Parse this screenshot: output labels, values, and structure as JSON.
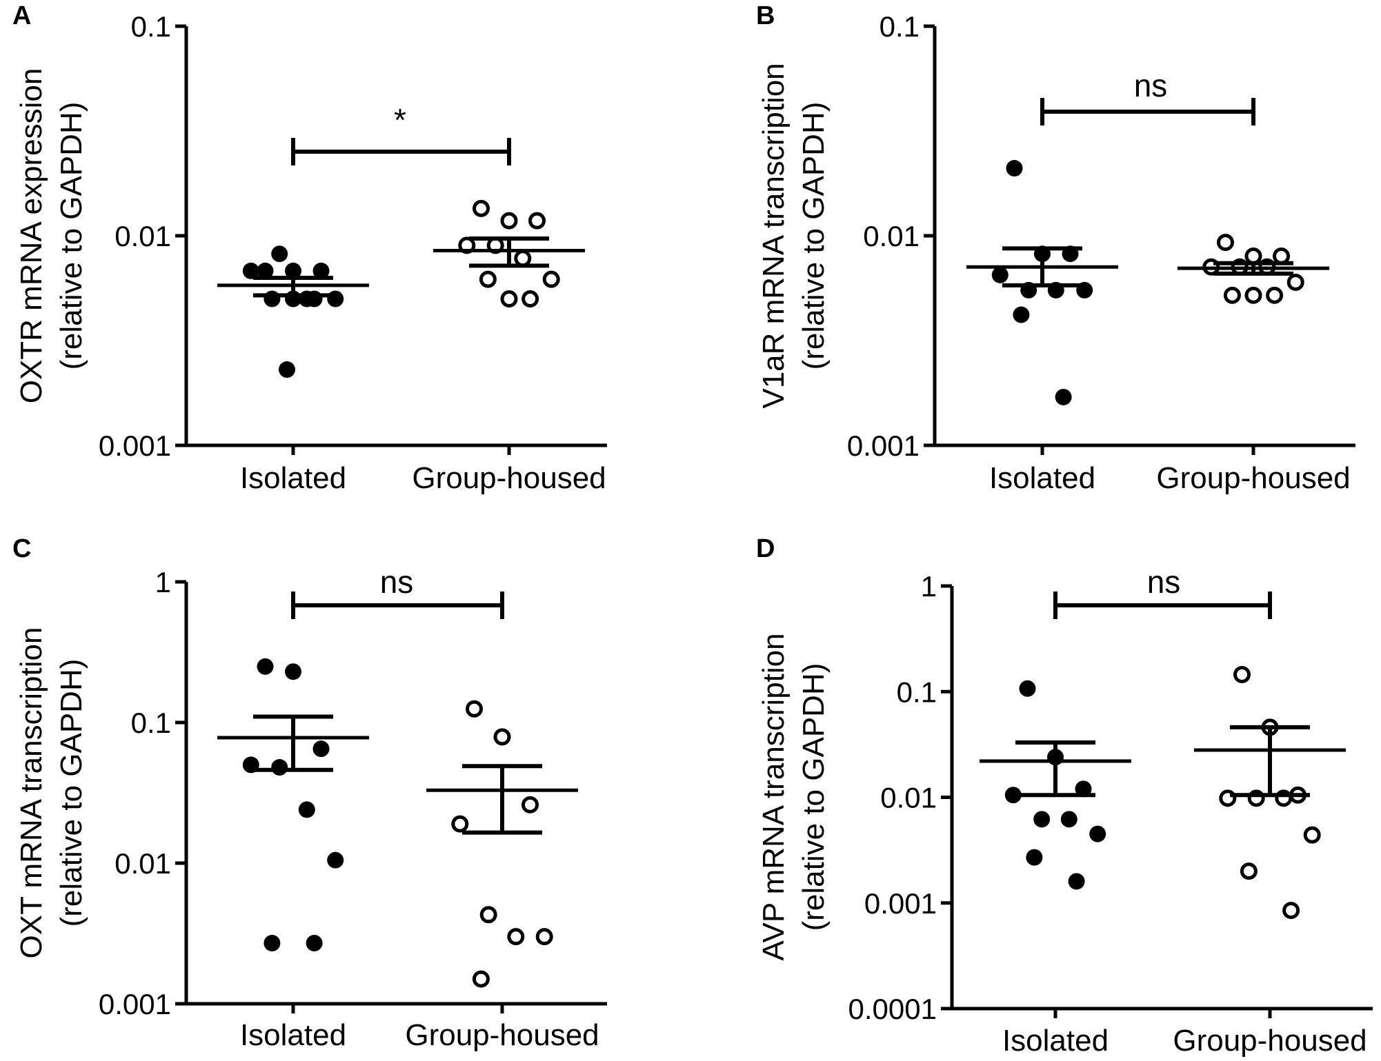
{
  "chart_data": [
    {
      "type": "scatter",
      "panel": "A",
      "ylabel": [
        "OXTR mRNA expression",
        "(relative to GAPDH)"
      ],
      "yscale": "log",
      "ylim": [
        0.001,
        0.1
      ],
      "yticks": [
        "0.1",
        "0.01",
        "0.001"
      ],
      "categories": [
        "Isolated",
        "Group-housed"
      ],
      "significance": "*",
      "series": [
        {
          "name": "Isolated",
          "marker": "filled",
          "mean": 0.0058,
          "sem_low": 0.0052,
          "sem_high": 0.0063,
          "values": [
            0.0068,
            0.0068,
            0.0068,
            0.0068,
            0.0082,
            0.005,
            0.005,
            0.005,
            0.005,
            0.005,
            0.0023
          ]
        },
        {
          "name": "Group-housed",
          "marker": "open",
          "mean": 0.0085,
          "sem_low": 0.0072,
          "sem_high": 0.0097,
          "values": [
            0.0135,
            0.0118,
            0.0118,
            0.009,
            0.009,
            0.0078,
            0.0062,
            0.0062,
            0.005,
            0.005
          ]
        }
      ]
    },
    {
      "type": "scatter",
      "panel": "B",
      "ylabel": [
        "V1aR mRNA transcription",
        "(relative to  GAPDH)"
      ],
      "yscale": "log",
      "ylim": [
        0.001,
        0.1
      ],
      "yticks": [
        "0.1",
        "0.01",
        "0.001"
      ],
      "categories": [
        "Isolated",
        "Group-housed"
      ],
      "significance": "ns",
      "series": [
        {
          "name": "Isolated",
          "marker": "filled",
          "mean": 0.0071,
          "sem_low": 0.0058,
          "sem_high": 0.0087,
          "values": [
            0.021,
            0.0082,
            0.0082,
            0.0065,
            0.0055,
            0.0055,
            0.0055,
            0.0042,
            0.0017
          ]
        },
        {
          "name": "Group-housed",
          "marker": "open",
          "mean": 0.007,
          "sem_low": 0.0066,
          "sem_high": 0.0074,
          "values": [
            0.0093,
            0.008,
            0.008,
            0.0071,
            0.0071,
            0.0071,
            0.006,
            0.0052,
            0.0052,
            0.0052
          ]
        }
      ]
    },
    {
      "type": "scatter",
      "panel": "C",
      "ylabel": [
        "OXT mRNA transcription",
        "(relative to  GAPDH)"
      ],
      "yscale": "log",
      "ylim": [
        0.001,
        1
      ],
      "yticks": [
        "1",
        "0.1",
        "0.01",
        "0.001"
      ],
      "categories": [
        "Isolated",
        "Group-housed"
      ],
      "significance": "ns",
      "series": [
        {
          "name": "Isolated",
          "marker": "filled",
          "mean": 0.078,
          "sem_low": 0.046,
          "sem_high": 0.11,
          "values": [
            0.25,
            0.23,
            0.065,
            0.05,
            0.048,
            0.024,
            0.0105,
            0.0027,
            0.0027
          ]
        },
        {
          "name": "Group-housed",
          "marker": "open",
          "mean": 0.033,
          "sem_low": 0.0165,
          "sem_high": 0.049,
          "values": [
            0.125,
            0.079,
            0.026,
            0.019,
            0.0043,
            0.003,
            0.003,
            0.0015
          ]
        }
      ]
    },
    {
      "type": "scatter",
      "panel": "D",
      "ylabel": [
        "AVP mRNA transcription",
        "(relative to  GAPDH)"
      ],
      "yscale": "log",
      "ylim": [
        0.0001,
        1
      ],
      "yticks": [
        "1",
        "0.1",
        "0.01",
        "0.001",
        "0.0001"
      ],
      "categories": [
        "Isolated",
        "Group-housed"
      ],
      "significance": "ns",
      "series": [
        {
          "name": "Isolated",
          "marker": "filled",
          "mean": 0.022,
          "sem_low": 0.0105,
          "sem_high": 0.033,
          "values": [
            0.107,
            0.024,
            0.012,
            0.0105,
            0.0062,
            0.0062,
            0.0045,
            0.0027,
            0.0016
          ]
        },
        {
          "name": "Group-housed",
          "marker": "open",
          "mean": 0.028,
          "sem_low": 0.0105,
          "sem_high": 0.046,
          "values": [
            0.145,
            0.046,
            0.0105,
            0.0098,
            0.0098,
            0.0098,
            0.0044,
            0.002,
            0.00085
          ]
        }
      ]
    }
  ]
}
